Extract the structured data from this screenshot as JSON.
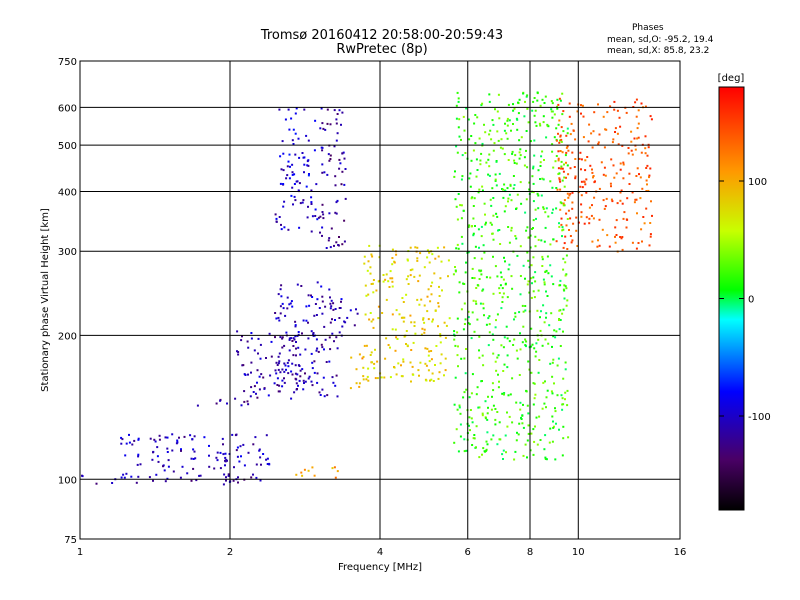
{
  "chart_data": {
    "type": "scatter",
    "title": "Tromsø 20160412 20:58:00-20:59:43",
    "subtitle": "RwPretec (8p)",
    "xlabel": "Frequency [MHz]",
    "ylabel": "Stationary phase Virtual Height [km]",
    "x_scale": "log",
    "y_scale": "log",
    "xlim": [
      1,
      16
    ],
    "ylim": [
      75,
      750
    ],
    "x_ticks": [
      1,
      2,
      4,
      6,
      8,
      10,
      16
    ],
    "y_ticks": [
      75,
      100,
      200,
      300,
      400,
      500,
      600,
      750
    ],
    "grid": true,
    "info": {
      "heading": "Phases",
      "line1": "mean, sd,O: -95.2, 19.4",
      "line2": "mean, sd,X:  85.8, 23.2"
    },
    "colorbar": {
      "label": "[deg]",
      "range": [
        -180,
        180
      ],
      "ticks": [
        {
          "value": 100,
          "label": "100"
        },
        {
          "value": 0,
          "label": "0"
        },
        {
          "value": -100,
          "label": "-100"
        }
      ]
    },
    "clusters": [
      {
        "x": [
          1.0,
          2.3
        ],
        "y": [
          98,
          104
        ],
        "phase": -110
      },
      {
        "x": [
          1.2,
          2.4
        ],
        "y": [
          104,
          125
        ],
        "phase": -105
      },
      {
        "x": [
          2.7,
          3.3
        ],
        "y": [
          101,
          108
        ],
        "phase": 105
      },
      {
        "x": [
          1.7,
          2.3
        ],
        "y": [
          143,
          150
        ],
        "phase": -110
      },
      {
        "x": [
          2.05,
          2.8
        ],
        "y": [
          150,
          205
        ],
        "phase": -110
      },
      {
        "x": [
          2.45,
          3.3
        ],
        "y": [
          148,
          200
        ],
        "phase": -110
      },
      {
        "x": [
          2.45,
          3.4
        ],
        "y": [
          195,
          260
        ],
        "phase": -105
      },
      {
        "x": [
          3.3,
          3.6
        ],
        "y": [
          210,
          228
        ],
        "phase": -110
      },
      {
        "x": [
          2.45,
          3.0
        ],
        "y": [
          330,
          420
        ],
        "phase": -100
      },
      {
        "x": [
          2.5,
          2.95
        ],
        "y": [
          420,
          600
        ],
        "phase": -95
      },
      {
        "x": [
          3.0,
          3.4
        ],
        "y": [
          300,
          600
        ],
        "phase": -115
      },
      {
        "x": [
          3.45,
          3.7
        ],
        "y": [
          150,
          185
        ],
        "phase": 100
      },
      {
        "x": [
          3.7,
          5.5
        ],
        "y": [
          160,
          310
        ],
        "phase": 80
      },
      {
        "x": [
          5.6,
          9.5
        ],
        "y": [
          110,
          650
        ],
        "phase": 20
      },
      {
        "x": [
          9.0,
          14.0
        ],
        "y": [
          300,
          630
        ],
        "phase": 140
      }
    ]
  }
}
